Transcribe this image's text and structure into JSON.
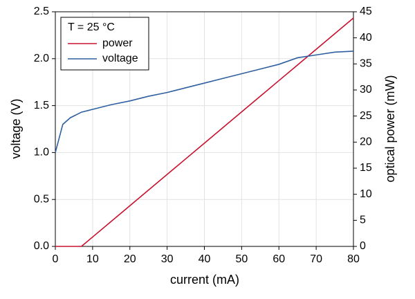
{
  "chart_data": {
    "type": "line",
    "legend_title": "T = 25 °C",
    "xlabel": "current (mA)",
    "ylabel": "voltage (V)",
    "y2label": "optical power (mW)",
    "x": [
      0,
      2,
      4,
      5,
      6,
      7,
      8,
      10,
      15,
      20,
      25,
      30,
      35,
      40,
      45,
      50,
      55,
      60,
      65,
      70,
      75,
      80
    ],
    "series": [
      {
        "name": "power",
        "color": "#c8102e",
        "axis": "y2",
        "values": [
          0,
          0,
          0,
          0,
          0,
          0,
          0.6,
          1.8,
          4.8,
          7.8,
          10.8,
          13.8,
          16.8,
          19.8,
          22.8,
          25.8,
          28.8,
          31.8,
          34.8,
          37.8,
          40.8,
          43.8
        ]
      },
      {
        "name": "voltage",
        "color": "#2e5fa0",
        "values": [
          1.0,
          1.3,
          1.37,
          1.39,
          1.41,
          1.43,
          1.44,
          1.46,
          1.51,
          1.55,
          1.6,
          1.64,
          1.69,
          1.74,
          1.79,
          1.84,
          1.89,
          1.94,
          2.01,
          2.04,
          2.07,
          2.08
        ]
      }
    ],
    "xlim": [
      0,
      80
    ],
    "xticks": [
      0,
      10,
      20,
      30,
      40,
      50,
      60,
      70,
      80
    ],
    "ylim": [
      0,
      2.5
    ],
    "yticks": [
      {
        "value": 0,
        "label": "0.0"
      },
      0.5,
      {
        "value": 1,
        "label": "1.0"
      },
      1.5,
      {
        "value": 2,
        "label": "2.0"
      },
      2.5
    ],
    "y2lim": [
      0,
      45
    ],
    "y2ticks": [
      0,
      5,
      10,
      15,
      20,
      25,
      30,
      35,
      40,
      45
    ],
    "grid": true,
    "legend": "upper-left"
  }
}
